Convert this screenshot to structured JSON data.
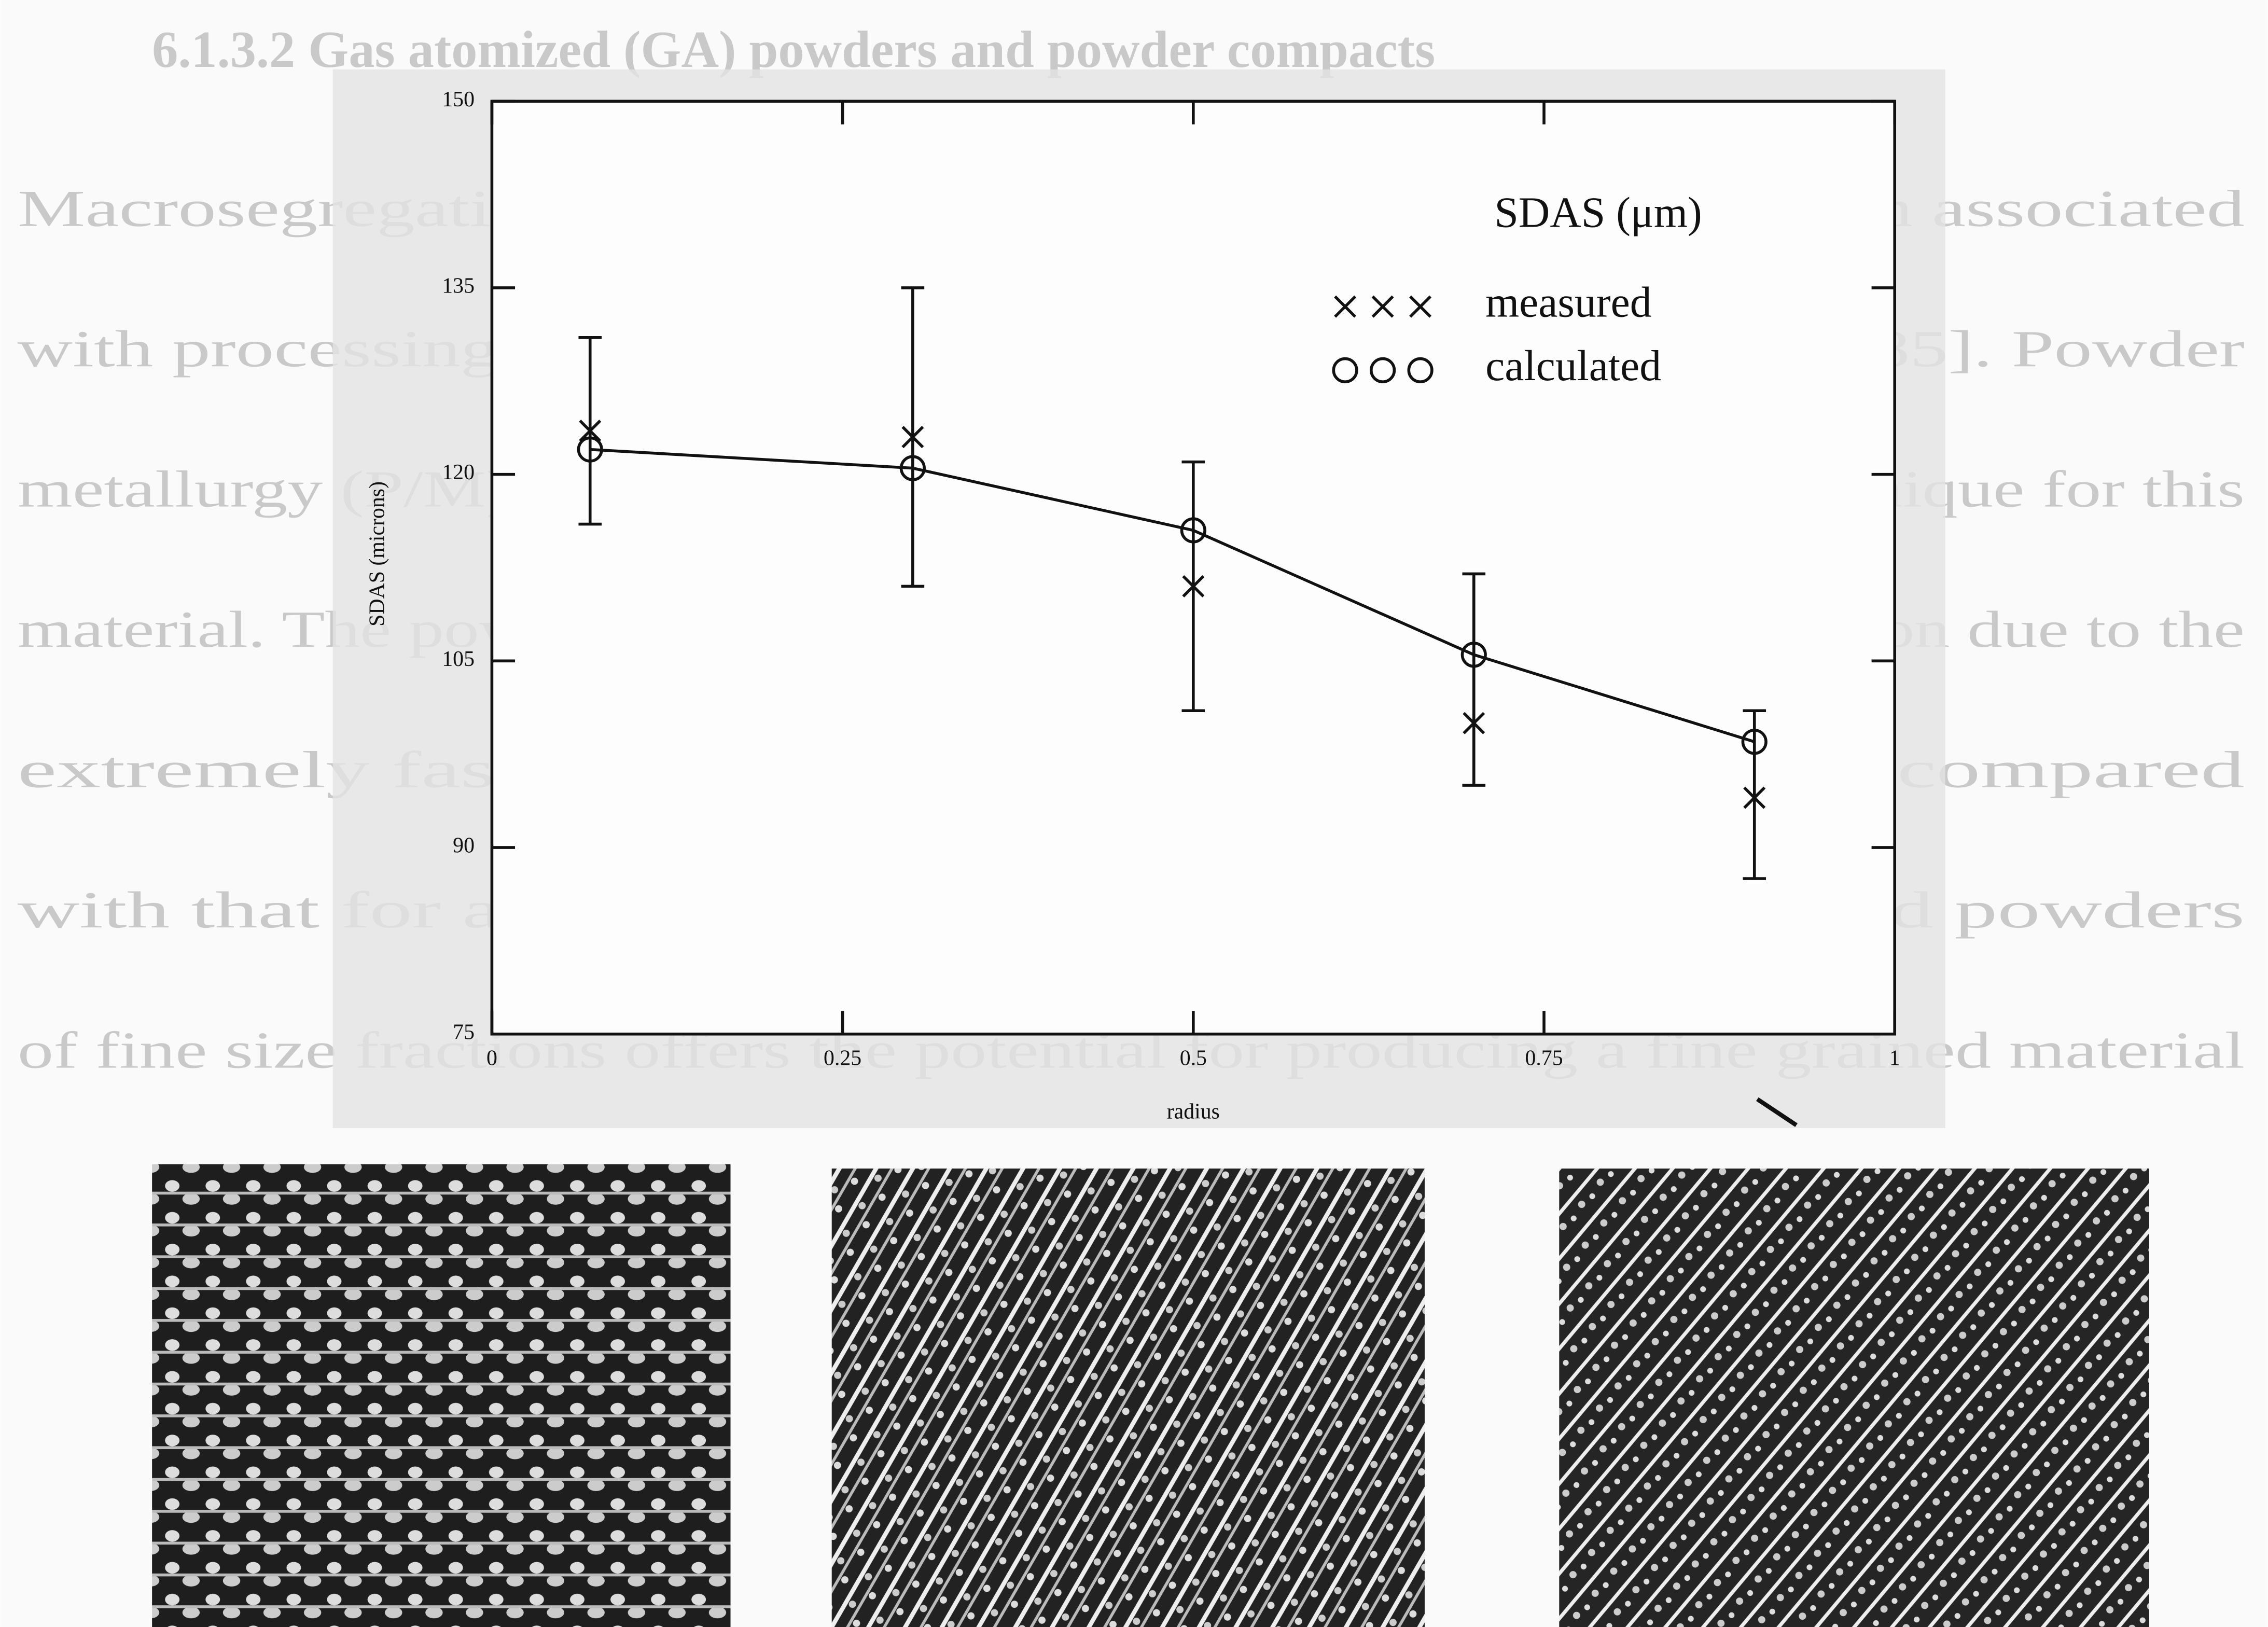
{
  "document": {
    "heading": "6.1.3.2 Gas atomized (GA) powders and powder compacts",
    "lines": [
      "Macrosegregation of elements has been found to be a problem associated",
      "with processing of 8738 through a conventional ingot route [85]. Powder",
      "metallurgy (P/M) has thus become an established processing technique for this",
      "material. The powder route can virtually eliminate macrosegregation due to the",
      "extremely fast cooling rates of small molten droplets compared",
      "with that for a large casting [86]. The use of pre-alloyed powders",
      "of fine size fractions offers the potential for producing a fine grained material"
    ]
  },
  "chart_data": {
    "type": "line",
    "y_label": "SDAS (microns)",
    "x_label": "radius",
    "legend_title": "SDAS (μm)",
    "legend": "upper-right",
    "x": [
      0.07,
      0.3,
      0.5,
      0.7,
      0.9
    ],
    "series": [
      {
        "name": "measured",
        "color": "#111111",
        "marker": "x",
        "line": false,
        "values": [
          123.5,
          123,
          111,
          100,
          94
        ],
        "error_bars": [
          [
            116,
            131
          ],
          [
            111,
            135
          ],
          [
            101,
            121
          ],
          [
            95,
            112
          ],
          [
            87.5,
            101
          ]
        ]
      },
      {
        "name": "calculated",
        "color": "#111111",
        "marker": "circle",
        "line": true,
        "values": [
          122,
          120.5,
          115.5,
          105.5,
          98.5
        ]
      }
    ],
    "xlim": [
      0,
      1
    ],
    "xticks": [
      0,
      0.25,
      0.5,
      0.75,
      1
    ],
    "ylim": [
      75,
      150
    ],
    "yticks": [
      75,
      90,
      105,
      120,
      135,
      150
    ]
  }
}
